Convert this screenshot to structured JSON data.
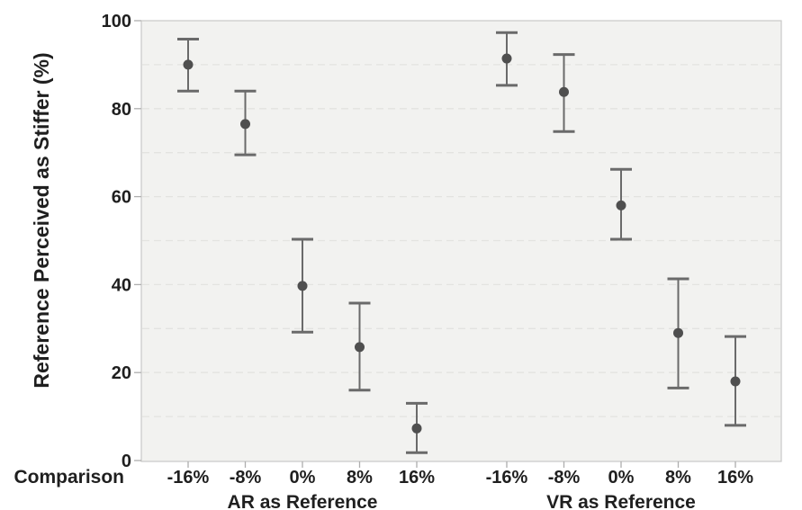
{
  "colors": {
    "page_background": "#ffffff",
    "panel_background": "#f2f2f0",
    "panel_border": "#c9c9c7",
    "gridline": "#e3e3e0",
    "tick_mark": "#aeaeae",
    "error_bar": "#6a6a6a",
    "marker": "#4f4f4f",
    "text": "#1f1f1f"
  },
  "chart_data": {
    "type": "scatter",
    "subtype": "point-with-error-bars",
    "title": "",
    "ylabel": "Reference Perceived as Stiffer (%)",
    "xlabel": "Comparison",
    "ylim": [
      0,
      100
    ],
    "y_ticks": [
      0,
      20,
      40,
      60,
      80,
      100
    ],
    "grid": "dashed horizontal gridlines every 10 percent",
    "legend": "none",
    "groups": [
      {
        "label": "AR as Reference",
        "categories": [
          "-16%",
          "-8%",
          "0%",
          "8%",
          "16%"
        ],
        "means": [
          90.0,
          76.5,
          39.7,
          25.8,
          7.3
        ],
        "ci_low": [
          84.0,
          69.5,
          29.2,
          16.0,
          1.8
        ],
        "ci_high": [
          95.8,
          84.0,
          50.3,
          35.8,
          13.0
        ]
      },
      {
        "label": "VR as Reference",
        "categories": [
          "-16%",
          "-8%",
          "0%",
          "8%",
          "16%"
        ],
        "means": [
          91.4,
          83.8,
          58.0,
          29.0,
          18.0
        ],
        "ci_low": [
          85.3,
          74.8,
          50.3,
          16.5,
          8.0
        ],
        "ci_high": [
          97.3,
          92.3,
          66.2,
          41.3,
          28.2
        ]
      }
    ]
  }
}
